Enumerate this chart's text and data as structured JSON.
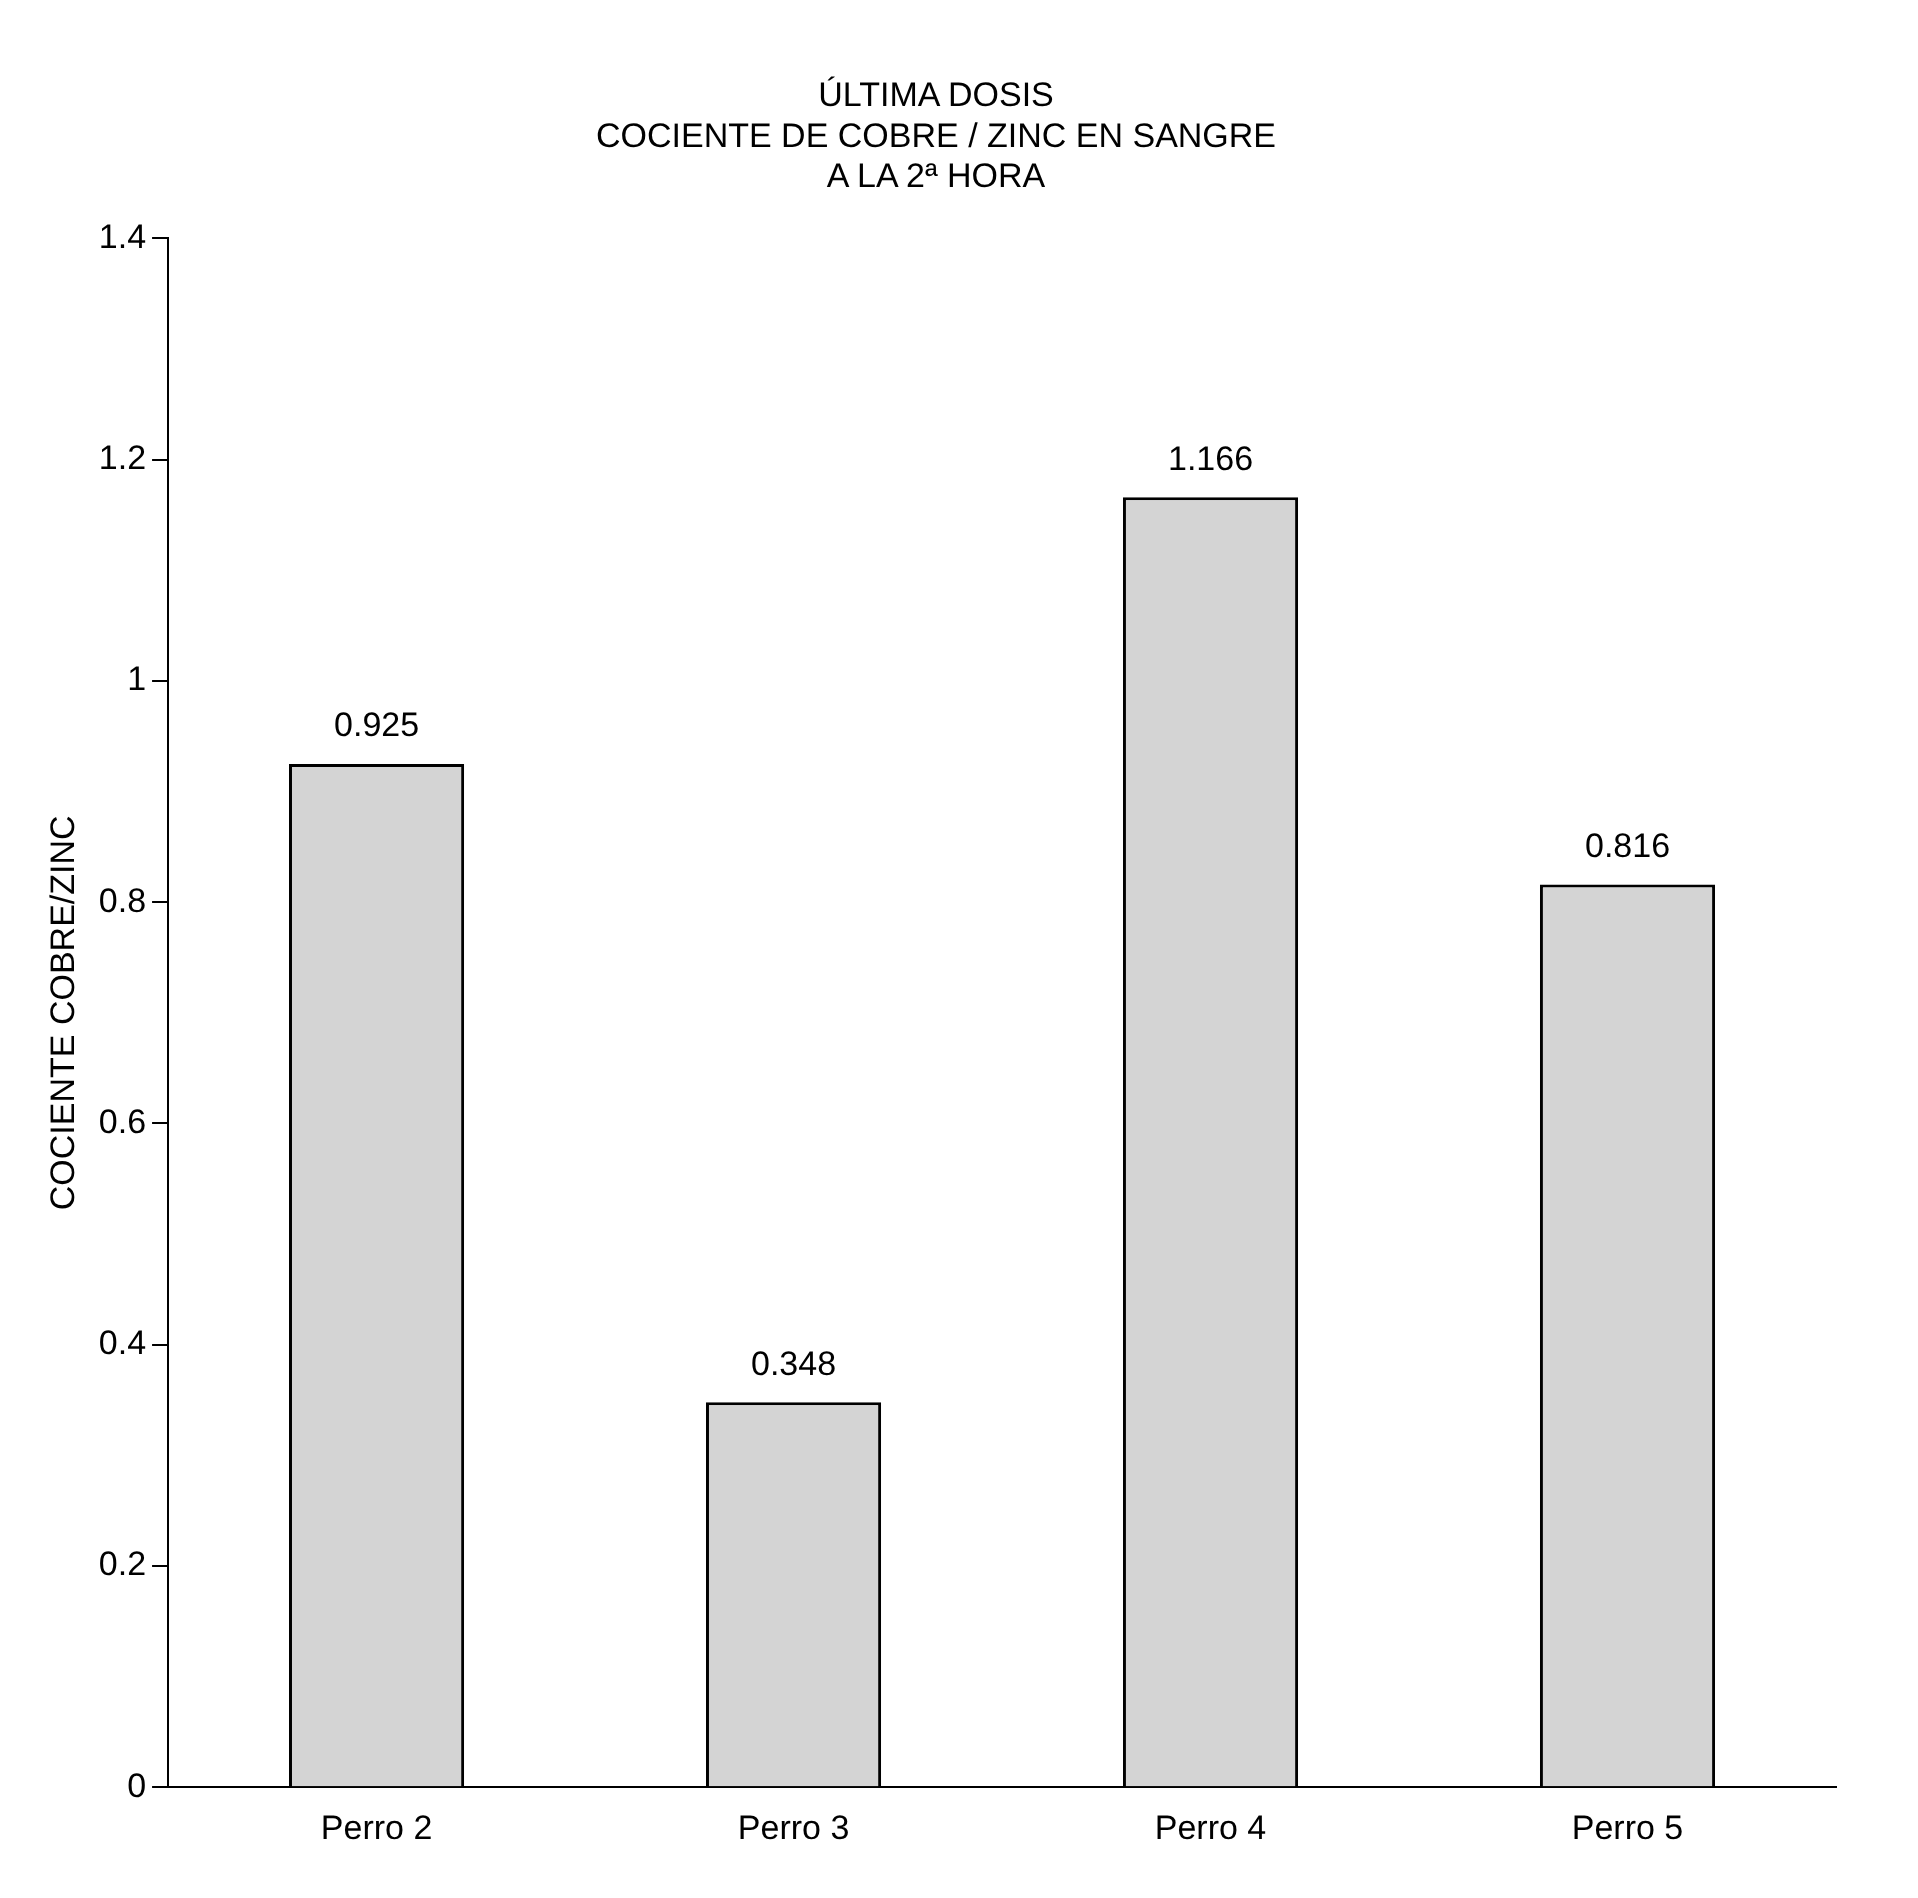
{
  "chart_data": {
    "type": "bar",
    "title": "ÚLTIMA DOSIS\nCOCIENTE DE COBRE / ZINC EN SANGRE\nA LA 2ª HORA",
    "ylabel": "COCIENTE COBRE/ZINC",
    "categories": [
      "Perro 2",
      "Perro 3",
      "Perro 4",
      "Perro 5"
    ],
    "values": [
      0.925,
      0.348,
      1.166,
      0.816
    ],
    "color": "#d4d4d4",
    "ylim": [
      0,
      1.4
    ],
    "yticks": [
      0,
      0.2,
      0.4,
      0.6,
      0.8,
      1,
      1.2,
      1.4
    ],
    "grid": false,
    "legend": false,
    "data_labels": true
  }
}
